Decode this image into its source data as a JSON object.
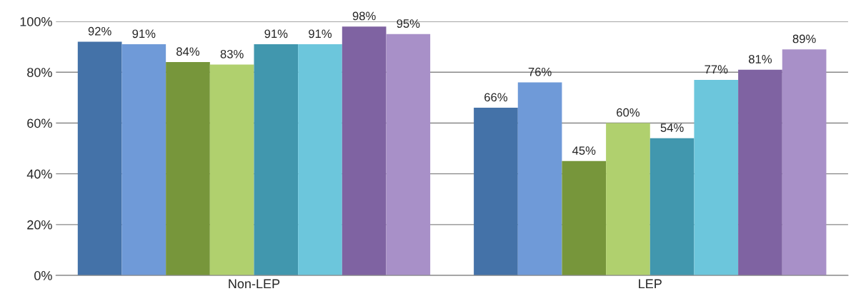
{
  "chart_data": {
    "type": "bar",
    "categories": [
      "Non-LEP",
      "LEP"
    ],
    "series": [
      {
        "color": "#4472a8",
        "values": [
          92,
          66
        ],
        "value_labels": [
          "92%",
          "66%"
        ]
      },
      {
        "color": "#6f9ad8",
        "values": [
          91,
          76
        ],
        "value_labels": [
          "91%",
          "76%"
        ]
      },
      {
        "color": "#77963b",
        "values": [
          84,
          45
        ],
        "value_labels": [
          "84%",
          "45%"
        ]
      },
      {
        "color": "#b0d06e",
        "values": [
          83,
          60
        ],
        "value_labels": [
          "83%",
          "60%"
        ]
      },
      {
        "color": "#4197ae",
        "values": [
          91,
          54
        ],
        "value_labels": [
          "91%",
          "54%"
        ]
      },
      {
        "color": "#6cc6dc",
        "values": [
          91,
          77
        ],
        "value_labels": [
          "91%",
          "77%"
        ]
      },
      {
        "color": "#7f63a2",
        "values": [
          98,
          81
        ],
        "value_labels": [
          "98%",
          "81%"
        ]
      },
      {
        "color": "#a890c8",
        "values": [
          95,
          89
        ],
        "value_labels": [
          "95%",
          "89%"
        ]
      }
    ],
    "ylim": [
      0,
      100
    ],
    "yticks": [
      {
        "value": 0,
        "label": "0%"
      },
      {
        "value": 20,
        "label": "20%"
      },
      {
        "value": 40,
        "label": "40%"
      },
      {
        "value": 60,
        "label": "60%"
      },
      {
        "value": 80,
        "label": "80%"
      },
      {
        "value": 100,
        "label": "100%"
      }
    ],
    "grid": "y",
    "legend": false
  }
}
